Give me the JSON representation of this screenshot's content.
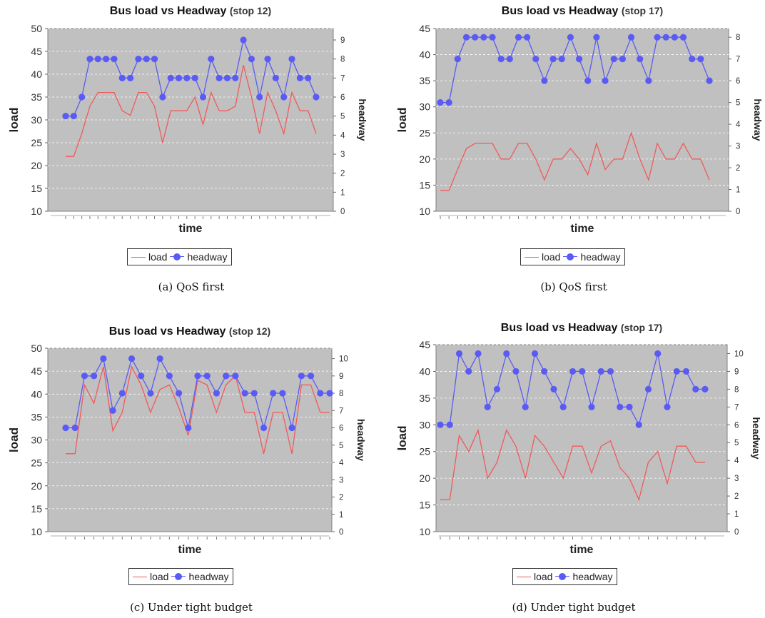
{
  "colors": {
    "plot_bg": "#c0c0c0",
    "load": "#f05a5a",
    "headway": "#5a5af5",
    "grid": "#ffffff"
  },
  "chart_data": [
    {
      "type": "line",
      "title": "Bus load vs Headway",
      "subtitle": "(stop 12)",
      "xlabel": "time",
      "ylabel": "load",
      "y2label": "headway",
      "ylim": [
        10,
        50
      ],
      "yticks": [
        10,
        15,
        20,
        25,
        30,
        35,
        40,
        45,
        50
      ],
      "y2lim": [
        0,
        9.6
      ],
      "y2ticks": [
        0,
        1,
        2,
        3,
        4,
        5,
        6,
        7,
        8,
        9
      ],
      "grid": true,
      "legend_position": "bottom",
      "caption": "(a) QoS first",
      "series": [
        {
          "name": "load",
          "axis": "left",
          "marker": false,
          "values": [
            22,
            22,
            27,
            33,
            36,
            36,
            36,
            32,
            31,
            36,
            36,
            33,
            25,
            32,
            32,
            32,
            35,
            29,
            36,
            32,
            32,
            33,
            42,
            35,
            27,
            36,
            32,
            27,
            36,
            32,
            32,
            27
          ]
        },
        {
          "name": "headway",
          "axis": "right",
          "marker": true,
          "values": [
            5,
            5,
            6,
            8,
            8,
            8,
            8,
            7,
            7,
            8,
            8,
            8,
            6,
            7,
            7,
            7,
            7,
            6,
            8,
            7,
            7,
            7,
            9,
            8,
            6,
            8,
            7,
            6,
            8,
            7,
            7,
            6
          ]
        }
      ]
    },
    {
      "type": "line",
      "title": "Bus load vs Headway",
      "subtitle": "(stop 17)",
      "xlabel": "time",
      "ylabel": "load",
      "y2label": "headway",
      "ylim": [
        10,
        45
      ],
      "yticks": [
        10,
        15,
        20,
        25,
        30,
        35,
        40,
        45
      ],
      "y2lim": [
        0,
        8.4
      ],
      "y2ticks": [
        0,
        1,
        2,
        3,
        4,
        5,
        6,
        7,
        8
      ],
      "grid": true,
      "legend_position": "bottom",
      "caption": "(b) QoS first",
      "series": [
        {
          "name": "load",
          "axis": "left",
          "marker": false,
          "values": [
            14,
            14,
            18,
            22,
            23,
            23,
            23,
            20,
            20,
            23,
            23,
            20,
            16,
            20,
            20,
            22,
            20,
            17,
            23,
            18,
            20,
            20,
            25,
            20,
            16,
            23,
            20,
            20,
            23,
            20,
            20,
            16
          ]
        },
        {
          "name": "headway",
          "axis": "right",
          "marker": true,
          "values": [
            5,
            5,
            7,
            8,
            8,
            8,
            8,
            7,
            7,
            8,
            8,
            7,
            6,
            7,
            7,
            8,
            7,
            6,
            8,
            6,
            7,
            7,
            8,
            7,
            6,
            8,
            8,
            8,
            8,
            7,
            7,
            6
          ]
        }
      ]
    },
    {
      "type": "line",
      "title": "Bus load vs Headway",
      "subtitle": "(stop 12)",
      "xlabel": "time",
      "ylabel": "load",
      "y2label": "headway",
      "ylim": [
        10,
        50
      ],
      "yticks": [
        10,
        15,
        20,
        25,
        30,
        35,
        40,
        45,
        50
      ],
      "y2lim": [
        0,
        10.6
      ],
      "y2ticks": [
        0,
        1,
        2,
        3,
        4,
        5,
        6,
        7,
        8,
        9,
        10
      ],
      "grid": true,
      "legend_position": "bottom",
      "caption": "(c) Under tight budget",
      "series": [
        {
          "name": "load",
          "axis": "left",
          "marker": false,
          "values": [
            27,
            27,
            42,
            38,
            46,
            32,
            36,
            46,
            42,
            36,
            41,
            42,
            37,
            31,
            43,
            42,
            36,
            42,
            44,
            36,
            36,
            27,
            36,
            36,
            27,
            42,
            42,
            36,
            36
          ]
        },
        {
          "name": "headway",
          "axis": "right",
          "marker": true,
          "values": [
            6,
            6,
            9,
            9,
            10,
            7,
            8,
            10,
            9,
            8,
            10,
            9,
            8,
            6,
            9,
            9,
            8,
            9,
            9,
            8,
            8,
            6,
            8,
            8,
            6,
            9,
            9,
            8,
            8
          ]
        }
      ]
    },
    {
      "type": "line",
      "title": "Bus load vs Headway",
      "subtitle": "(stop 17)",
      "xlabel": "time",
      "ylabel": "load",
      "y2label": "headway",
      "ylim": [
        10,
        45
      ],
      "yticks": [
        10,
        15,
        20,
        25,
        30,
        35,
        40,
        45
      ],
      "y2lim": [
        0,
        10.5
      ],
      "y2ticks": [
        0,
        1,
        2,
        3,
        4,
        5,
        6,
        7,
        8,
        9,
        10
      ],
      "grid": true,
      "legend_position": "bottom",
      "caption": "(d) Under tight budget",
      "series": [
        {
          "name": "load",
          "axis": "left",
          "marker": false,
          "values": [
            16,
            16,
            28,
            25,
            29,
            20,
            23,
            29,
            26,
            20,
            28,
            26,
            23,
            20,
            26,
            26,
            21,
            26,
            27,
            22,
            20,
            16,
            23,
            25,
            19,
            26,
            26,
            23,
            23
          ]
        },
        {
          "name": "headway",
          "axis": "right",
          "marker": true,
          "values": [
            6,
            6,
            10,
            9,
            10,
            7,
            8,
            10,
            9,
            7,
            10,
            9,
            8,
            7,
            9,
            9,
            7,
            9,
            9,
            7,
            7,
            6,
            8,
            10,
            7,
            9,
            9,
            8,
            8
          ]
        }
      ]
    }
  ]
}
